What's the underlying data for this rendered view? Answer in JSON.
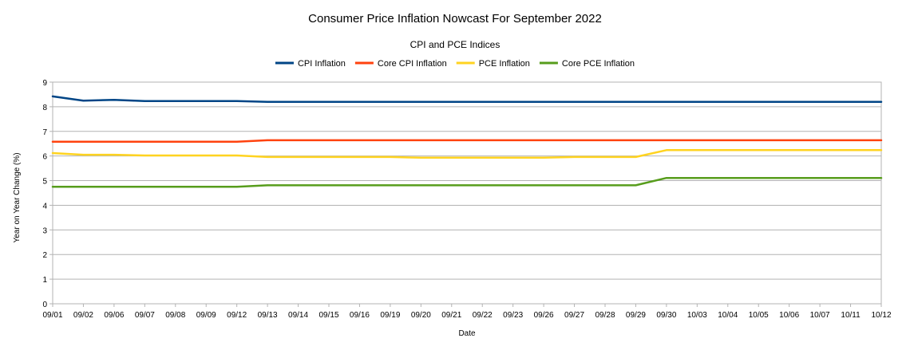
{
  "chart_data": {
    "type": "line",
    "title": "Consumer Price Inflation Nowcast For September 2022",
    "subtitle": "CPI and PCE Indices",
    "xlabel": "Date",
    "ylabel": "Year on Year Change (%)",
    "ylim": [
      0,
      9
    ],
    "yticks": [
      0,
      1,
      2,
      3,
      4,
      5,
      6,
      7,
      8,
      9
    ],
    "grid": true,
    "legend_position": "top",
    "categories": [
      "09/01",
      "09/02",
      "09/06",
      "09/07",
      "09/08",
      "09/09",
      "09/12",
      "09/13",
      "09/14",
      "09/15",
      "09/16",
      "09/19",
      "09/20",
      "09/21",
      "09/22",
      "09/23",
      "09/26",
      "09/27",
      "09/28",
      "09/29",
      "09/30",
      "10/03",
      "10/04",
      "10/05",
      "10/06",
      "10/07",
      "10/11",
      "10/12"
    ],
    "series": [
      {
        "name": "CPI Inflation",
        "color": "#004586",
        "values": [
          8.42,
          8.25,
          8.28,
          8.23,
          8.23,
          8.23,
          8.23,
          8.2,
          8.2,
          8.2,
          8.2,
          8.2,
          8.2,
          8.2,
          8.2,
          8.2,
          8.2,
          8.2,
          8.2,
          8.2,
          8.2,
          8.2,
          8.2,
          8.2,
          8.2,
          8.2,
          8.2,
          8.2
        ]
      },
      {
        "name": "Core CPI Inflation",
        "color": "#ff420e",
        "values": [
          6.58,
          6.58,
          6.58,
          6.58,
          6.58,
          6.58,
          6.58,
          6.64,
          6.64,
          6.64,
          6.64,
          6.64,
          6.64,
          6.64,
          6.64,
          6.64,
          6.64,
          6.64,
          6.64,
          6.64,
          6.64,
          6.64,
          6.64,
          6.64,
          6.64,
          6.64,
          6.64,
          6.64
        ]
      },
      {
        "name": "PCE Inflation",
        "color": "#ffd320",
        "values": [
          6.12,
          6.05,
          6.05,
          6.02,
          6.02,
          6.02,
          6.02,
          5.96,
          5.96,
          5.96,
          5.96,
          5.96,
          5.93,
          5.93,
          5.93,
          5.93,
          5.93,
          5.96,
          5.96,
          5.96,
          6.24,
          6.24,
          6.24,
          6.24,
          6.24,
          6.24,
          6.24,
          6.24
        ]
      },
      {
        "name": "Core PCE Inflation",
        "color": "#579d1c",
        "values": [
          4.75,
          4.75,
          4.75,
          4.75,
          4.75,
          4.75,
          4.75,
          4.81,
          4.81,
          4.81,
          4.81,
          4.81,
          4.81,
          4.81,
          4.81,
          4.81,
          4.81,
          4.81,
          4.81,
          4.81,
          5.11,
          5.11,
          5.11,
          5.11,
          5.11,
          5.11,
          5.11,
          5.11
        ]
      }
    ]
  }
}
